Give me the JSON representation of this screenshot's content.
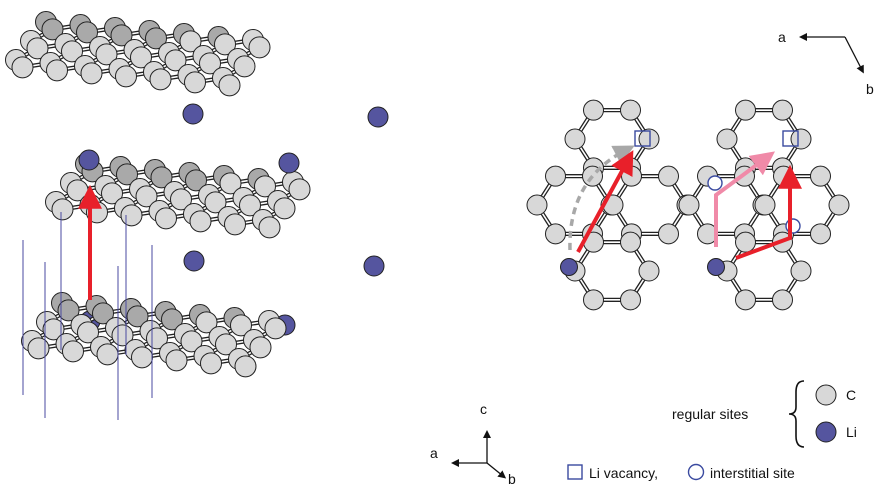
{
  "axes_left": {
    "a": "a",
    "b": "b",
    "c": "c"
  },
  "axes_right": {
    "a": "a",
    "b": "b"
  },
  "legend": {
    "regular_sites": "regular sites",
    "carbon": "C",
    "lithium": "Li",
    "vacancy": "Li vacancy,",
    "interstitial": "interstitial site"
  },
  "colors": {
    "carbon_light": "#d8d8d8",
    "carbon_dark": "#a9a9a9",
    "lithium": "#55559f",
    "arrow_red": "#e8202a",
    "arrow_pink": "#f08aa8",
    "arrow_gray": "#a8a8a8",
    "site_blue": "#3a4aa0",
    "column_line": "#4a4aa0"
  }
}
